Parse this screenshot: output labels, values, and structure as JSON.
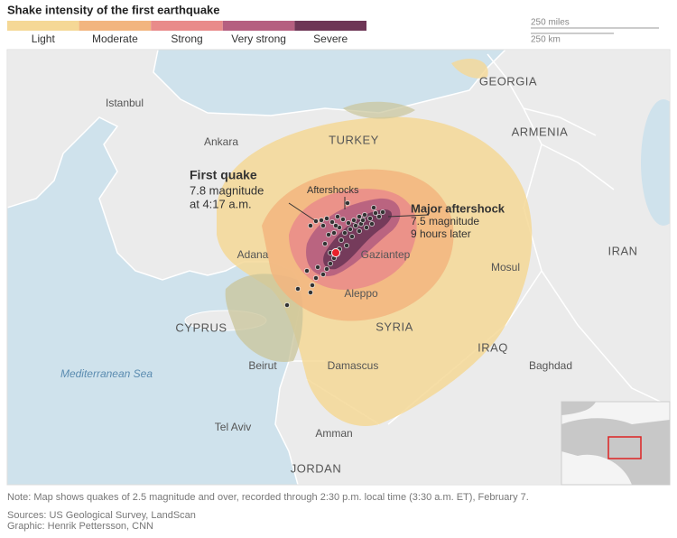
{
  "legend": {
    "title": "Shake intensity of the first earthquake",
    "items": [
      {
        "label": "Light",
        "color": "#f5d896"
      },
      {
        "label": "Moderate",
        "color": "#f2b57f"
      },
      {
        "label": "Strong",
        "color": "#e98b8a"
      },
      {
        "label": "Very strong",
        "color": "#b55f80"
      },
      {
        "label": "Severe",
        "color": "#6e3656"
      }
    ]
  },
  "scale": {
    "miles": "250 miles",
    "km": "250 km"
  },
  "countries": [
    "TURKEY",
    "SYRIA",
    "GEORGIA",
    "ARMENIA",
    "IRAN",
    "IRAQ",
    "CYPRUS",
    "JORDAN"
  ],
  "cities": [
    "Istanbul",
    "Ankara",
    "Adana",
    "Gaziantep",
    "Aleppo",
    "Mosul",
    "Beirut",
    "Damascus",
    "Baghdad",
    "Tel Aviv",
    "Amman"
  ],
  "sea": "Mediterranean Sea",
  "annotations": {
    "first_quake": {
      "title": "First quake",
      "lines": [
        "7.8 magnitude",
        "at 4:17 a.m."
      ]
    },
    "aftershocks": "Aftershocks",
    "major_aftershock": {
      "title": "Major aftershock",
      "lines": [
        "7.5 magnitude",
        "9 hours later"
      ]
    }
  },
  "footer": {
    "note": "Note: Map shows quakes of 2.5 magnitude and over, recorded through 2:30 p.m. local time (3:30 a.m. ET), February 7.",
    "sources": "Sources: US Geological Survey, LandScan",
    "credit": "Graphic: Henrik Pettersson, CNN"
  }
}
